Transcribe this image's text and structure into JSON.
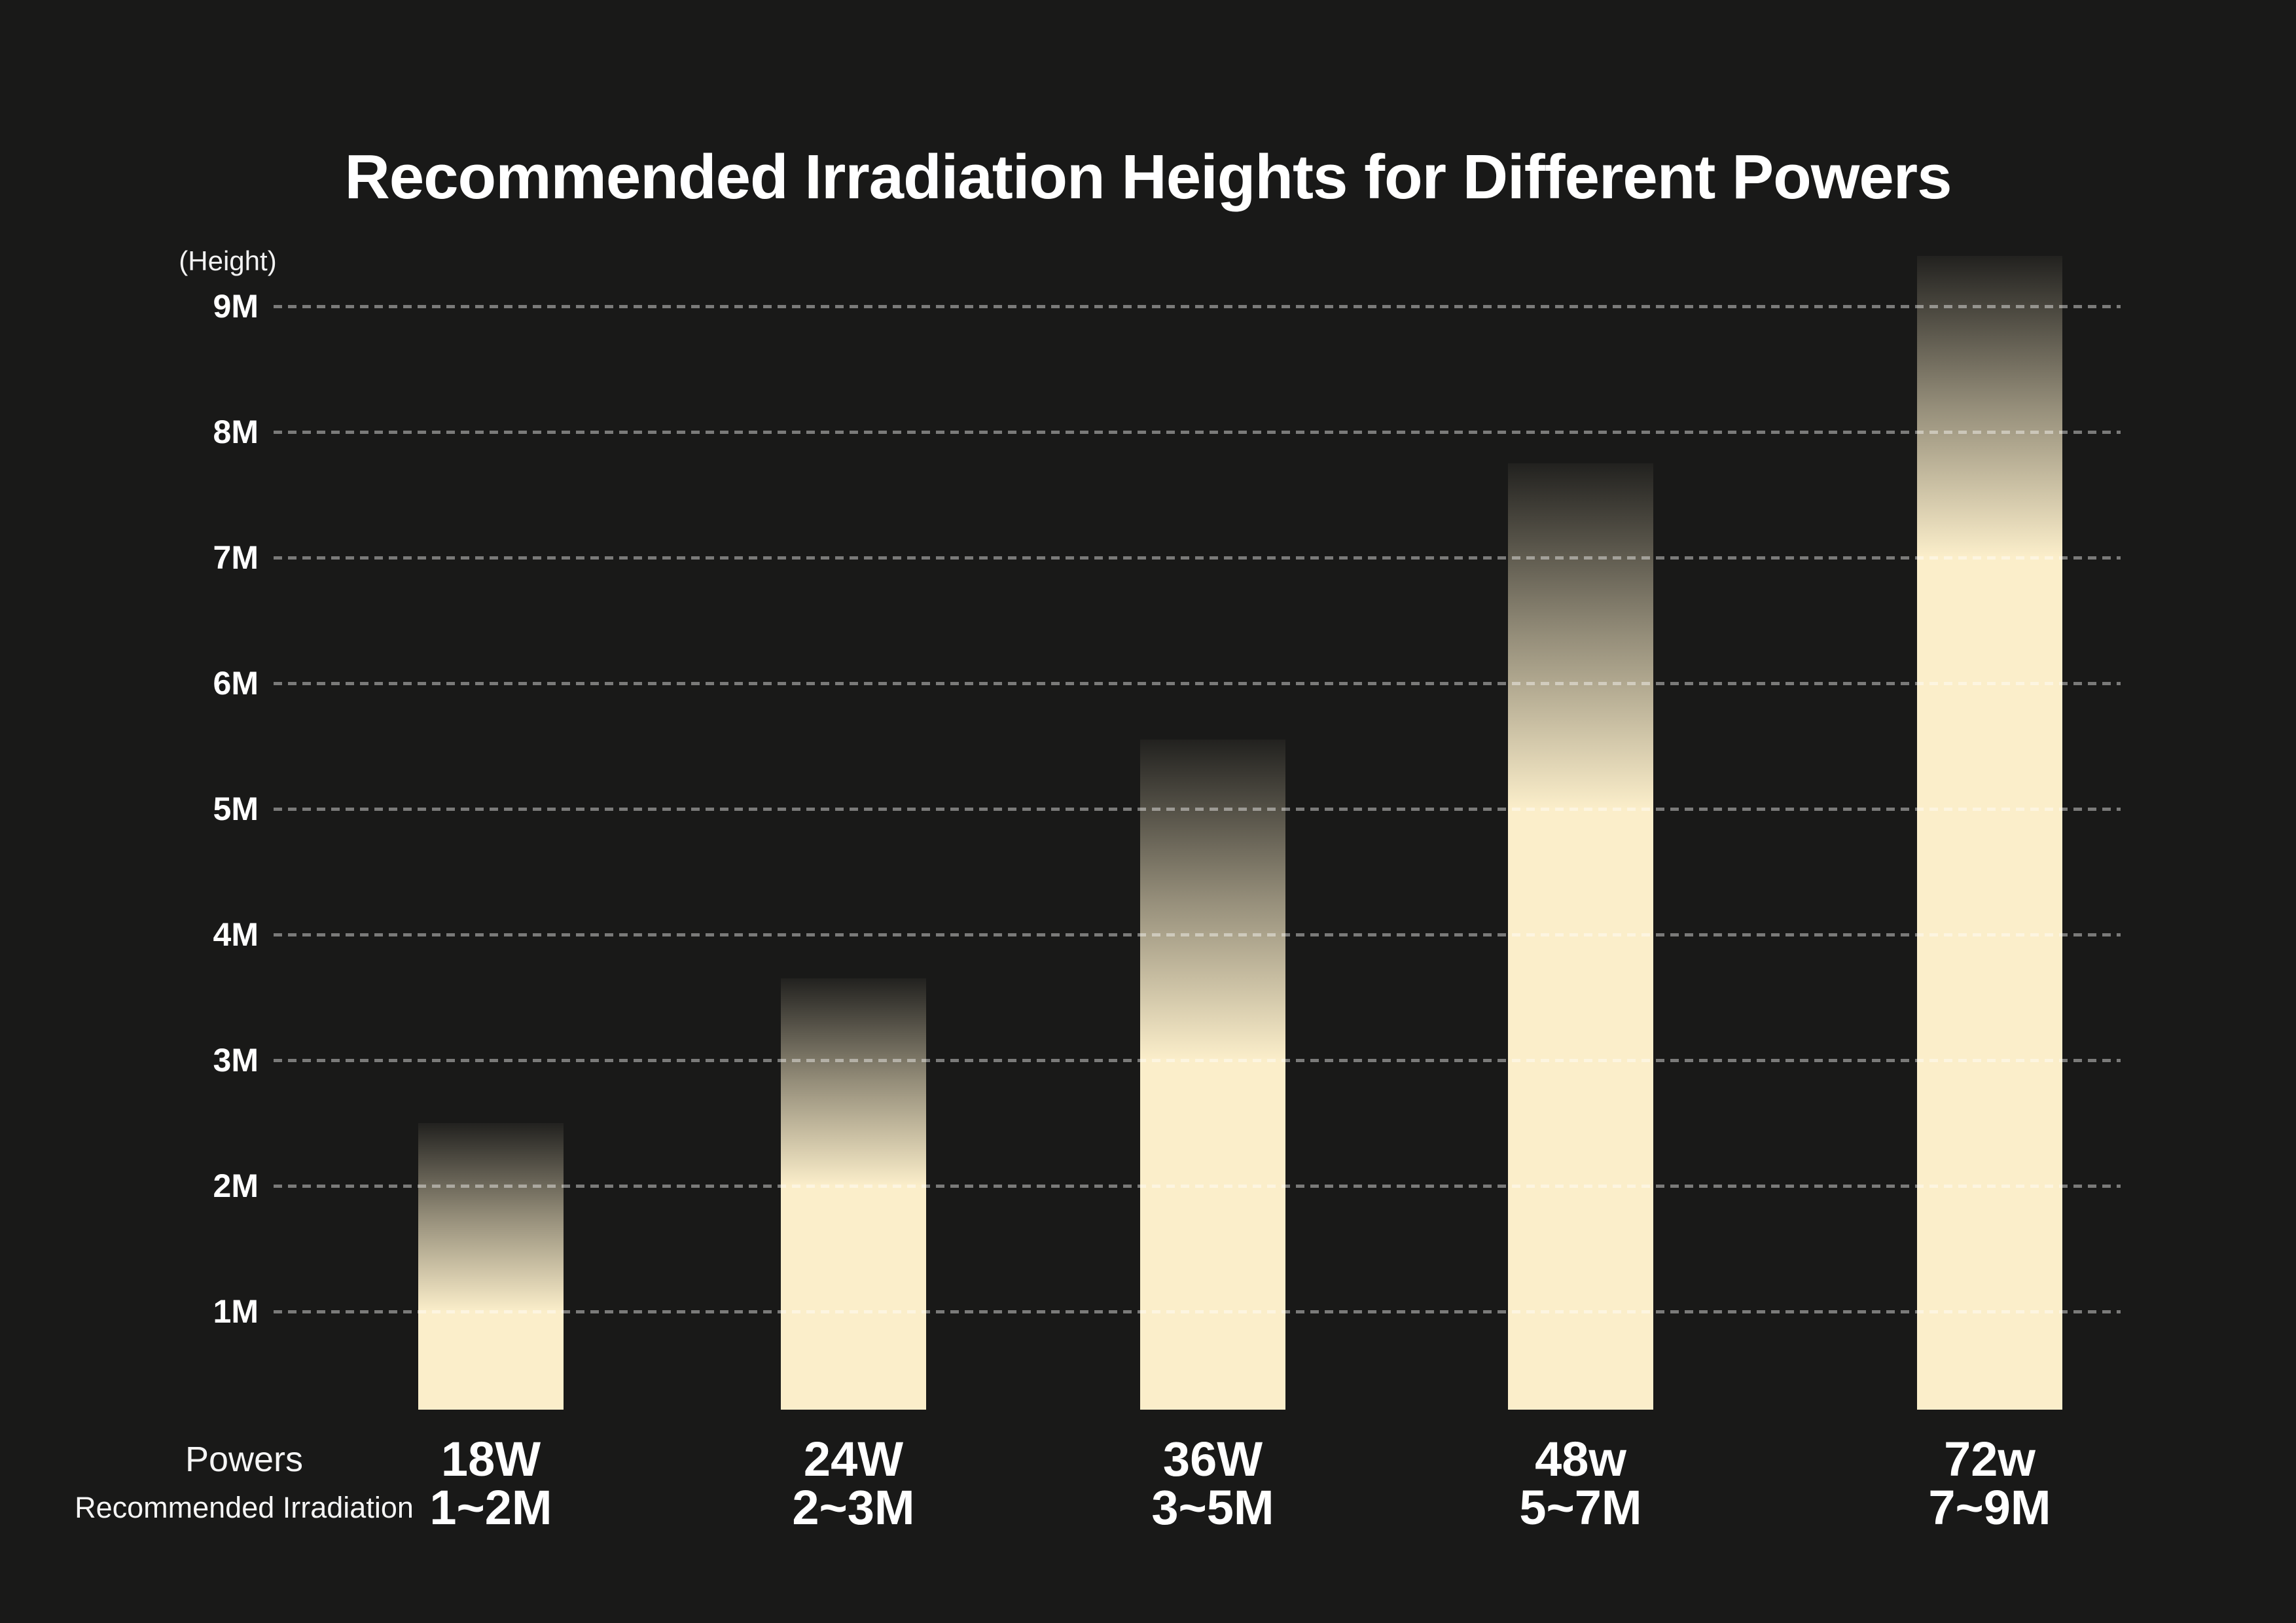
{
  "title": "Recommended Irradiation Heights for Different Powers",
  "y_axis": {
    "unit_label": "(Height)",
    "ticks": [
      {
        "m": 9,
        "label": "9M"
      },
      {
        "m": 8,
        "label": "8M"
      },
      {
        "m": 7,
        "label": "7M"
      },
      {
        "m": 6,
        "label": "6M"
      },
      {
        "m": 5,
        "label": "5M"
      },
      {
        "m": 4,
        "label": "4M"
      },
      {
        "m": 3,
        "label": "3M"
      },
      {
        "m": 2,
        "label": "2M"
      },
      {
        "m": 1,
        "label": "1M"
      }
    ]
  },
  "row_headers": {
    "powers_label": "Powers",
    "irradiation_label": "Recommended Irradiation"
  },
  "colors": {
    "background": "#191918",
    "bar_cream": "#FBEECA",
    "gridline": "rgba(255,255,255,0.42)",
    "text": "#FFFFFF"
  },
  "chart_data": {
    "type": "bar",
    "title": "Recommended Irradiation Heights for Different Powers",
    "ylabel": "(Height)",
    "xlabel": "Powers",
    "ylim": [
      0,
      9.5
    ],
    "grid": true,
    "legend": false,
    "categories": [
      "18W",
      "24W",
      "36W",
      "48w",
      "72w"
    ],
    "yticks": [
      "1M",
      "2M",
      "3M",
      "4M",
      "5M",
      "6M",
      "7M",
      "8M",
      "9M"
    ],
    "bars": [
      {
        "power": "18W",
        "range_label": "1~2M",
        "min_m": 1,
        "max_m": 2,
        "fade_top_m": 2.5
      },
      {
        "power": "24W",
        "range_label": "2~3M",
        "min_m": 2,
        "max_m": 3,
        "fade_top_m": 3.65
      },
      {
        "power": "36W",
        "range_label": "3~5M",
        "min_m": 3,
        "max_m": 5,
        "fade_top_m": 5.55
      },
      {
        "power": "48w",
        "range_label": "5~7M",
        "min_m": 5,
        "max_m": 7,
        "fade_top_m": 7.75
      },
      {
        "power": "72w",
        "range_label": "7~9M",
        "min_m": 7,
        "max_m": 9,
        "fade_top_m": 9.4
      }
    ],
    "series": [
      {
        "name": "Recommended Irradiation (min M)",
        "values": [
          1,
          2,
          3,
          5,
          7
        ]
      },
      {
        "name": "Recommended Irradiation (max M)",
        "values": [
          2,
          3,
          5,
          7,
          9
        ]
      }
    ]
  }
}
